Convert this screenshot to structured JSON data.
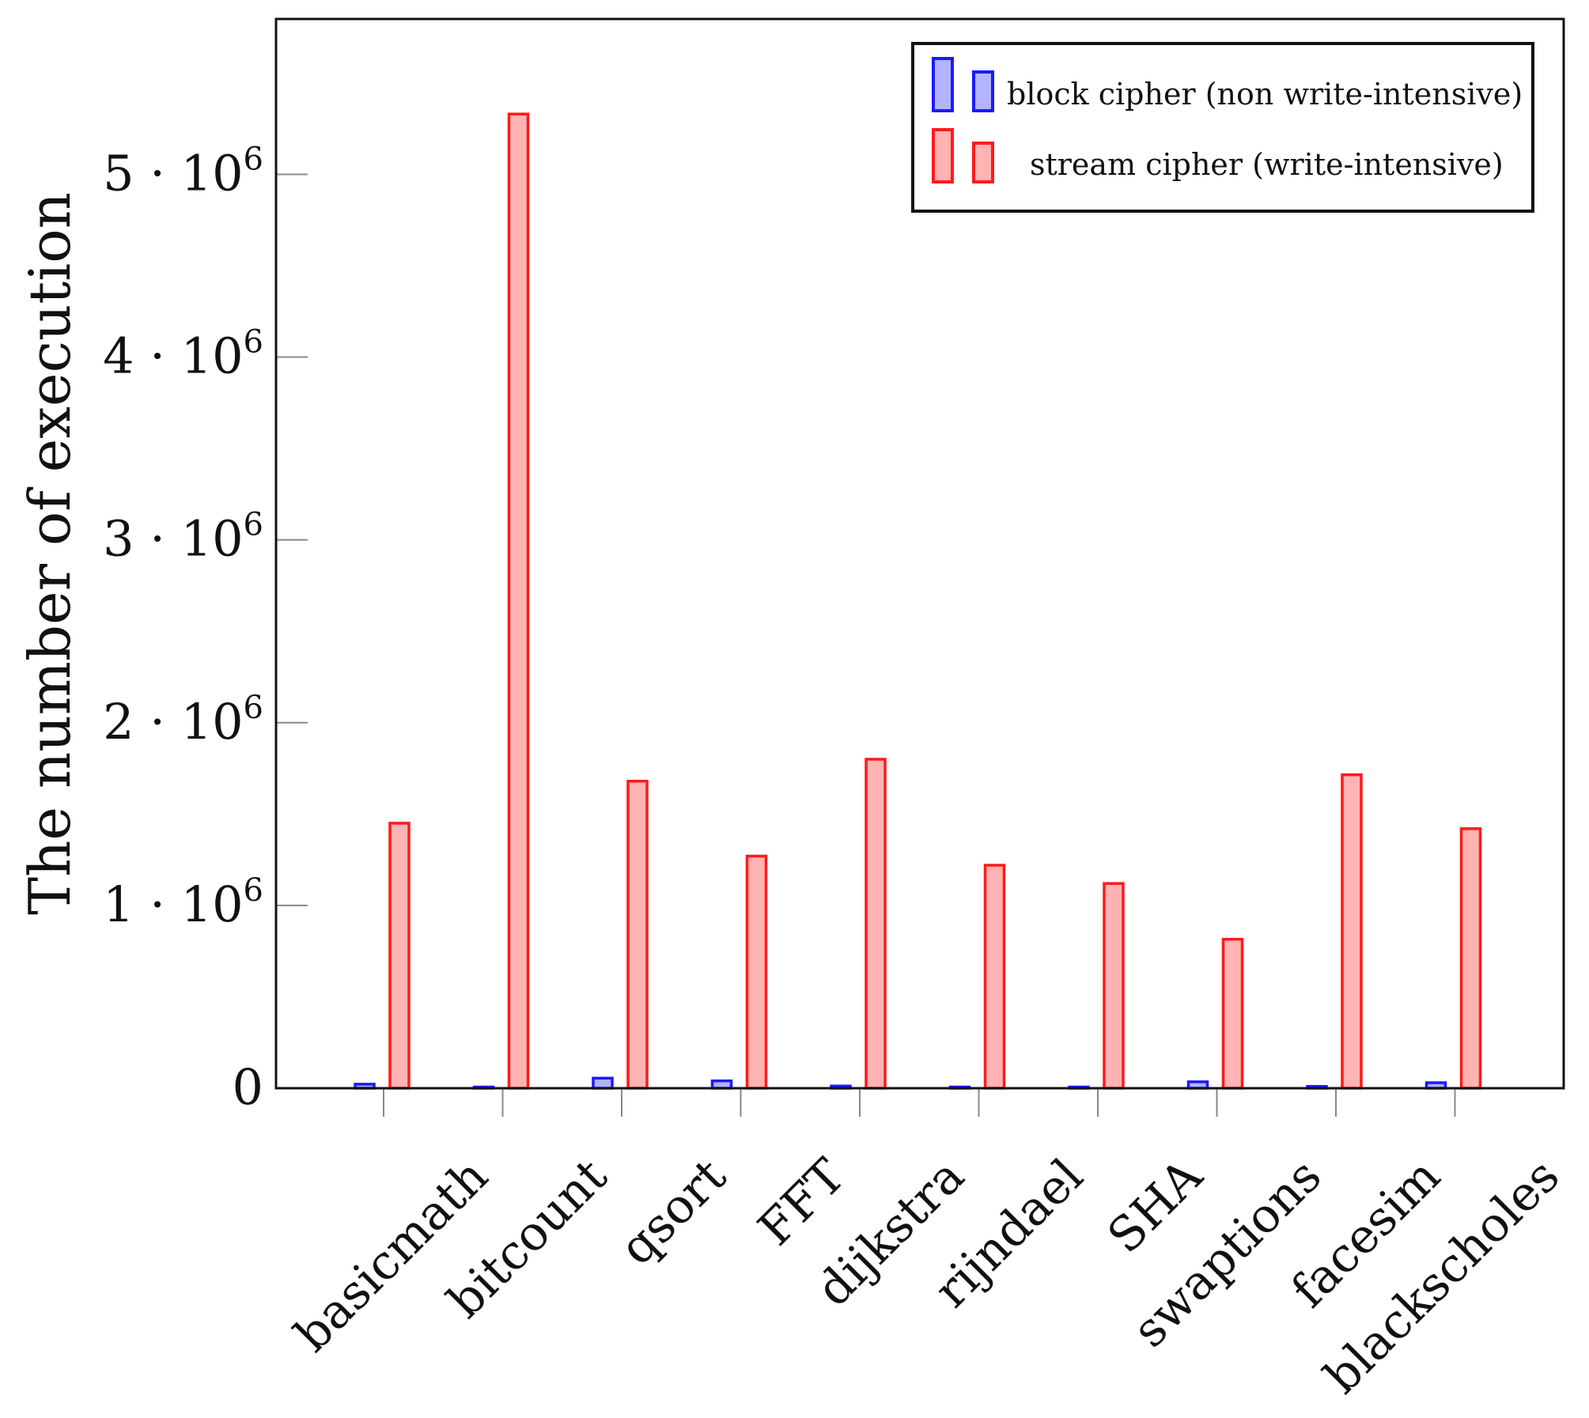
{
  "chart_data": {
    "type": "bar",
    "title": "",
    "xlabel": "",
    "ylabel": "The number of execution",
    "ylim": [
      0,
      5850000
    ],
    "y_ticks": [
      {
        "value": 0,
        "label": "0"
      },
      {
        "value": 1000000,
        "label": "1 · 10",
        "exp": "6"
      },
      {
        "value": 2000000,
        "label": "2 · 10",
        "exp": "6"
      },
      {
        "value": 3000000,
        "label": "3 · 10",
        "exp": "6"
      },
      {
        "value": 4000000,
        "label": "4 · 10",
        "exp": "6"
      },
      {
        "value": 5000000,
        "label": "5 · 10",
        "exp": "6"
      }
    ],
    "categories": [
      "basicmath",
      "bitcount",
      "qsort",
      "FFT",
      "dijkstra",
      "rijndael",
      "SHA",
      "swaptions",
      "facesim",
      "blackscholes"
    ],
    "series": [
      {
        "name": "block cipher (non write-intensive)",
        "stroke": "#1a1aff",
        "fill": "#b3b3ff",
        "values": [
          22000,
          2000,
          55000,
          40000,
          12000,
          6000,
          5000,
          35000,
          10000,
          30000
        ]
      },
      {
        "name": "stream cipher (write-intensive)",
        "stroke": "#ff1a1a",
        "fill": "#ffb3b3",
        "values": [
          1450000,
          5330000,
          1680000,
          1270000,
          1800000,
          1220000,
          1120000,
          815000,
          1715000,
          1420000
        ]
      }
    ],
    "legend_position": "top-right",
    "grid": false
  }
}
